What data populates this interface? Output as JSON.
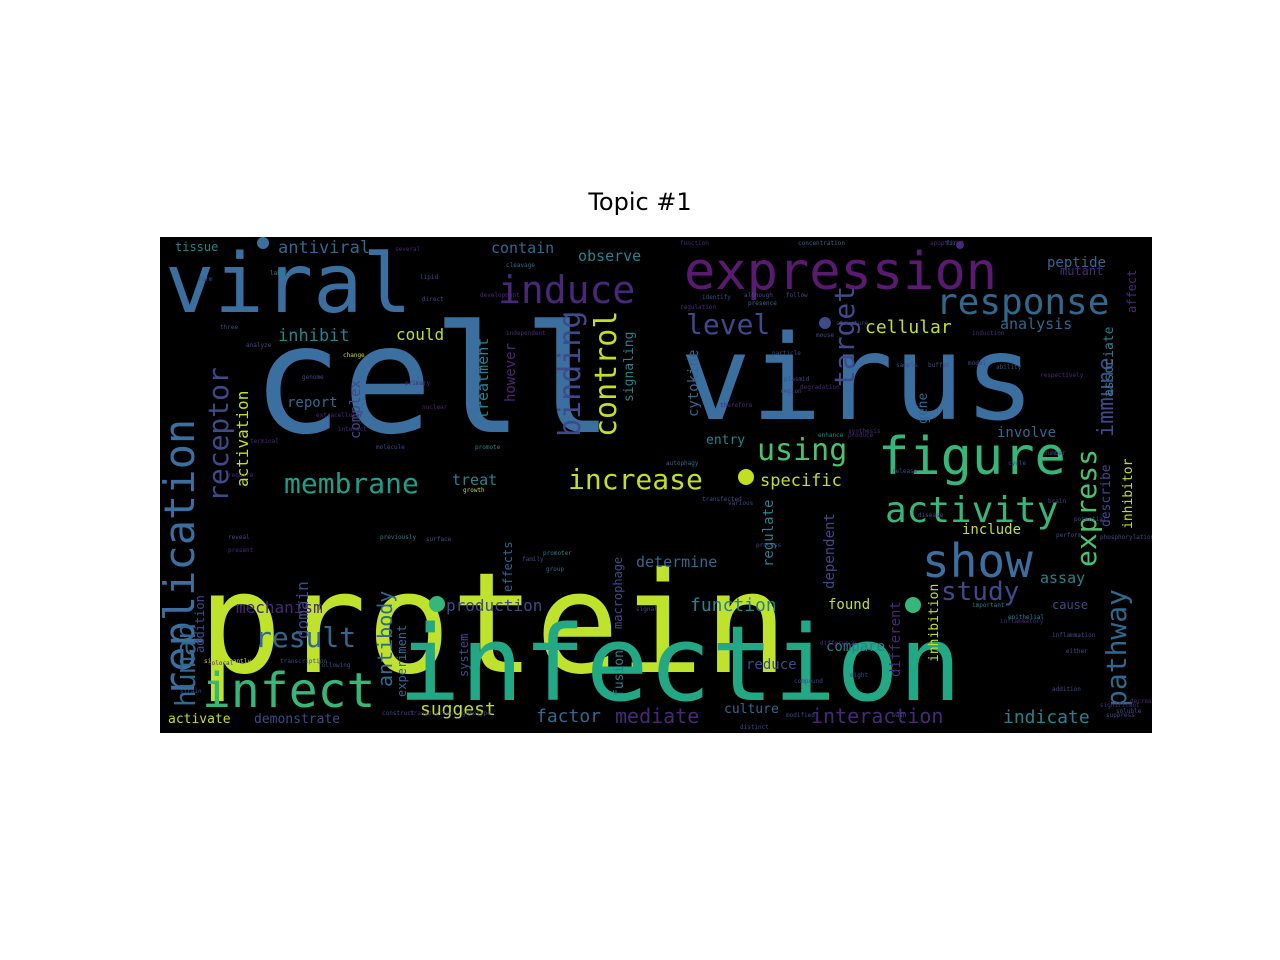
{
  "title": "Topic #1",
  "chart_data": {
    "type": "wordcloud",
    "title": "Topic #1",
    "colormap": "viridis",
    "background": "#000000",
    "words": [
      {
        "text": "cell",
        "weight": 1.0,
        "color": "#3b6fa0"
      },
      {
        "text": "virus",
        "weight": 0.92,
        "color": "#3b6fa0"
      },
      {
        "text": "protein",
        "weight": 0.96,
        "color": "#bfe22c"
      },
      {
        "text": "infection",
        "weight": 0.9,
        "color": "#22a884"
      },
      {
        "text": "viral",
        "weight": 0.7,
        "color": "#3b6fa0"
      },
      {
        "text": "expression",
        "weight": 0.52,
        "color": "#5a1a72"
      },
      {
        "text": "replication",
        "weight": 0.42,
        "color": "#3b6fa0"
      },
      {
        "text": "figure",
        "weight": 0.4,
        "color": "#35b779"
      },
      {
        "text": "infect",
        "weight": 0.4,
        "color": "#35b779"
      },
      {
        "text": "show",
        "weight": 0.38,
        "color": "#3b6fa0"
      },
      {
        "text": "induce",
        "weight": 0.36,
        "color": "#482878"
      },
      {
        "text": "response",
        "weight": 0.34,
        "color": "#31688e"
      },
      {
        "text": "activity",
        "weight": 0.32,
        "color": "#35b779"
      },
      {
        "text": "human",
        "weight": 0.3,
        "color": "#31688e"
      },
      {
        "text": "receptor",
        "weight": 0.3,
        "color": "#3e4a89"
      },
      {
        "text": "membrane",
        "weight": 0.28,
        "color": "#1f9e89"
      },
      {
        "text": "increase",
        "weight": 0.28,
        "color": "#c2df23"
      },
      {
        "text": "pathway",
        "weight": 0.27,
        "color": "#31688e"
      },
      {
        "text": "express",
        "weight": 0.27,
        "color": "#4ac16d"
      },
      {
        "text": "using",
        "weight": 0.26,
        "color": "#4ac16d"
      },
      {
        "text": "binding",
        "weight": 0.25,
        "color": "#3e4a89"
      },
      {
        "text": "control",
        "weight": 0.25,
        "color": "#c2df23"
      },
      {
        "text": "result",
        "weight": 0.25,
        "color": "#31688e"
      },
      {
        "text": "target",
        "weight": 0.25,
        "color": "#3e4a89"
      },
      {
        "text": "study",
        "weight": 0.24,
        "color": "#3e4a89"
      },
      {
        "text": "level",
        "weight": 0.24,
        "color": "#3e4a89"
      },
      {
        "text": "interaction",
        "weight": 0.22,
        "color": "#482878"
      },
      {
        "text": "immune",
        "weight": 0.21,
        "color": "#3e4a89"
      },
      {
        "text": "antibody",
        "weight": 0.2,
        "color": "#31688e"
      },
      {
        "text": "mediate",
        "weight": 0.2,
        "color": "#482878"
      },
      {
        "text": "suggest",
        "weight": 0.19,
        "color": "#c2df23"
      },
      {
        "text": "function",
        "weight": 0.19,
        "color": "#26828e"
      },
      {
        "text": "factor",
        "weight": 0.19,
        "color": "#31688e"
      },
      {
        "text": "indicate",
        "weight": 0.18,
        "color": "#26828e"
      },
      {
        "text": "mechanism",
        "weight": 0.18,
        "color": "#482878"
      },
      {
        "text": "production",
        "weight": 0.17,
        "color": "#3e4a89"
      },
      {
        "text": "activation",
        "weight": 0.17,
        "color": "#c2df23"
      },
      {
        "text": "cellular",
        "weight": 0.17,
        "color": "#c2df23"
      },
      {
        "text": "specific",
        "weight": 0.17,
        "color": "#c2df23"
      },
      {
        "text": "inhibit",
        "weight": 0.17,
        "color": "#26828e"
      },
      {
        "text": "domain",
        "weight": 0.16,
        "color": "#3e4a89"
      },
      {
        "text": "antiviral",
        "weight": 0.16,
        "color": "#31688e"
      },
      {
        "text": "contain",
        "weight": 0.15,
        "color": "#31688e"
      },
      {
        "text": "observe",
        "weight": 0.15,
        "color": "#26828e"
      },
      {
        "text": "analysis",
        "weight": 0.15,
        "color": "#31688e"
      },
      {
        "text": "peptide",
        "weight": 0.15,
        "color": "#31688e"
      },
      {
        "text": "could",
        "weight": 0.15,
        "color": "#c2df23"
      },
      {
        "text": "treatment",
        "weight": 0.14,
        "color": "#26828e"
      },
      {
        "text": "however",
        "weight": 0.14,
        "color": "#482878"
      },
      {
        "text": "signaling",
        "weight": 0.14,
        "color": "#26828e"
      },
      {
        "text": "cytokine",
        "weight": 0.14,
        "color": "#31688e"
      },
      {
        "text": "complex",
        "weight": 0.14,
        "color": "#3e4a89"
      },
      {
        "text": "report",
        "weight": 0.14,
        "color": "#31688e"
      },
      {
        "text": "treat",
        "weight": 0.13,
        "color": "#26828e"
      },
      {
        "text": "entry",
        "weight": 0.13,
        "color": "#26828e"
      },
      {
        "text": "involve",
        "weight": 0.13,
        "color": "#31688e"
      },
      {
        "text": "gene",
        "weight": 0.13,
        "color": "#31688e"
      },
      {
        "text": "include",
        "weight": 0.13,
        "color": "#c2df23"
      },
      {
        "text": "assay",
        "weight": 0.13,
        "color": "#26828e"
      },
      {
        "text": "associate",
        "weight": 0.13,
        "color": "#26828e"
      },
      {
        "text": "describe",
        "weight": 0.12,
        "color": "#3e4a89"
      },
      {
        "text": "inhibitor",
        "weight": 0.12,
        "color": "#c2df23"
      },
      {
        "text": "determine",
        "weight": 0.13,
        "color": "#31688e"
      },
      {
        "text": "dependent",
        "weight": 0.13,
        "color": "#3e4a89"
      },
      {
        "text": "regulate",
        "weight": 0.13,
        "color": "#26828e"
      },
      {
        "text": "different",
        "weight": 0.13,
        "color": "#482878"
      },
      {
        "text": "found",
        "weight": 0.13,
        "color": "#c2df23"
      },
      {
        "text": "compare",
        "weight": 0.13,
        "color": "#26828e"
      },
      {
        "text": "reduce",
        "weight": 0.13,
        "color": "#3e4a89"
      },
      {
        "text": "inhibition",
        "weight": 0.12,
        "color": "#c2df23"
      },
      {
        "text": "culture",
        "weight": 0.13,
        "color": "#31688e"
      },
      {
        "text": "fusion",
        "weight": 0.12,
        "color": "#26828e"
      },
      {
        "text": "activate",
        "weight": 0.12,
        "color": "#c2df23"
      },
      {
        "text": "demonstrate",
        "weight": 0.12,
        "color": "#3e4a89"
      },
      {
        "text": "addition",
        "weight": 0.11,
        "color": "#3e4a89"
      },
      {
        "text": "experiment",
        "weight": 0.11,
        "color": "#31688e"
      },
      {
        "text": "effects",
        "weight": 0.11,
        "color": "#31688e"
      },
      {
        "text": "macrophage",
        "weight": 0.11,
        "color": "#3e4a89"
      },
      {
        "text": "system",
        "weight": 0.11,
        "color": "#3e4a89"
      },
      {
        "text": "tissue",
        "weight": 0.11,
        "color": "#26828e"
      },
      {
        "text": "mutant",
        "weight": 0.11,
        "color": "#482878"
      },
      {
        "text": "affect",
        "weight": 0.1,
        "color": "#482878"
      },
      {
        "text": "cause",
        "weight": 0.1,
        "color": "#3e4a89"
      },
      {
        "text": "significantly",
        "weight": 0.05,
        "color": "#c2df23"
      },
      {
        "text": "transcription",
        "weight": 0.05,
        "color": "#3e4a89"
      },
      {
        "text": "apoptosis",
        "weight": 0.05,
        "color": "#482878"
      },
      {
        "text": "concentration",
        "weight": 0.05,
        "color": "#31688e"
      },
      {
        "text": "function",
        "weight": 0.05,
        "color": "#482878"
      },
      {
        "text": "first",
        "weight": 0.05,
        "color": "#3e4a89"
      },
      {
        "text": "several",
        "weight": 0.05,
        "color": "#482878"
      },
      {
        "text": "development",
        "weight": 0.05,
        "color": "#482878"
      },
      {
        "text": "cleavage",
        "weight": 0.05,
        "color": "#31688e"
      },
      {
        "text": "label",
        "weight": 0.05,
        "color": "#26828e"
      },
      {
        "text": "lipid",
        "weight": 0.05,
        "color": "#3e4a89"
      },
      {
        "text": "direct",
        "weight": 0.05,
        "color": "#3e4a89"
      },
      {
        "text": "change",
        "weight": 0.05,
        "color": "#c2df23"
      },
      {
        "text": "primary",
        "weight": 0.05,
        "color": "#482878"
      },
      {
        "text": "nuclear",
        "weight": 0.05,
        "color": "#482878"
      },
      {
        "text": "molecule",
        "weight": 0.05,
        "color": "#3e4a89"
      },
      {
        "text": "promote",
        "weight": 0.05,
        "color": "#26828e"
      },
      {
        "text": "growth",
        "weight": 0.05,
        "color": "#c2df23"
      },
      {
        "text": "previously",
        "weight": 0.05,
        "color": "#26828e"
      },
      {
        "text": "surface",
        "weight": 0.05,
        "color": "#3e4a89"
      },
      {
        "text": "promoter",
        "weight": 0.05,
        "color": "#26828e"
      },
      {
        "text": "present",
        "weight": 0.05,
        "color": "#482878"
      },
      {
        "text": "reveal",
        "weight": 0.05,
        "color": "#3e4a89"
      },
      {
        "text": "family",
        "weight": 0.05,
        "color": "#3e4a89"
      },
      {
        "text": "group",
        "weight": 0.05,
        "color": "#31688e"
      },
      {
        "text": "identify",
        "weight": 0.05,
        "color": "#3e4a89"
      },
      {
        "text": "presence",
        "weight": 0.05,
        "color": "#31688e"
      },
      {
        "text": "follow",
        "weight": 0.05,
        "color": "#3e4a89"
      },
      {
        "text": "although",
        "weight": 0.05,
        "color": "#3e4a89"
      },
      {
        "text": "regulation",
        "weight": 0.05,
        "color": "#482878"
      },
      {
        "text": "enhance",
        "weight": 0.05,
        "color": "#26828e"
      },
      {
        "text": "synthesis",
        "weight": 0.05,
        "color": "#482878"
      },
      {
        "text": "autophagy",
        "weight": 0.05,
        "color": "#31688e"
      },
      {
        "text": "therefore",
        "weight": 0.05,
        "color": "#482878"
      },
      {
        "text": "various",
        "weight": 0.05,
        "color": "#3e4a89"
      },
      {
        "text": "transfected",
        "weight": 0.05,
        "color": "#3e4a89"
      },
      {
        "text": "process",
        "weight": 0.05,
        "color": "#3e4a89"
      },
      {
        "text": "signal",
        "weight": 0.05,
        "color": "#3e4a89"
      },
      {
        "text": "particle",
        "weight": 0.05,
        "color": "#3e4a89"
      },
      {
        "text": "plasmid",
        "weight": 0.05,
        "color": "#3e4a89"
      },
      {
        "text": "region",
        "weight": 0.05,
        "color": "#3e4a89"
      },
      {
        "text": "degradation",
        "weight": 0.05,
        "color": "#482878"
      },
      {
        "text": "produce",
        "weight": 0.05,
        "color": "#482878"
      },
      {
        "text": "disease",
        "weight": 0.05,
        "color": "#3e4a89"
      },
      {
        "text": "important",
        "weight": 0.05,
        "color": "#26828e"
      },
      {
        "text": "perform",
        "weight": 0.05,
        "color": "#3e4a89"
      },
      {
        "text": "potential",
        "weight": 0.05,
        "color": "#3e4a89"
      },
      {
        "text": "epithelial",
        "weight": 0.05,
        "color": "#26828e"
      },
      {
        "text": "inflammatory",
        "weight": 0.05,
        "color": "#482878"
      },
      {
        "text": "either",
        "weight": 0.05,
        "color": "#3e4a89"
      },
      {
        "text": "phosphorylation",
        "weight": 0.05,
        "color": "#3e4a89"
      },
      {
        "text": "inflammation",
        "weight": 0.05,
        "color": "#3e4a89"
      },
      {
        "text": "difference",
        "weight": 0.05,
        "color": "#482878"
      },
      {
        "text": "might",
        "weight": 0.05,
        "color": "#3e4a89"
      },
      {
        "text": "release",
        "weight": 0.05,
        "color": "#3e4a89"
      },
      {
        "text": "brain",
        "weight": 0.05,
        "color": "#3e4a89"
      },
      {
        "text": "number",
        "weight": 0.05,
        "color": "#3e4a89"
      },
      {
        "text": "cycle",
        "weight": 0.05,
        "color": "#3e4a89"
      },
      {
        "text": "ability",
        "weight": 0.05,
        "color": "#3e4a89"
      },
      {
        "text": "induction",
        "weight": 0.05,
        "color": "#482878"
      },
      {
        "text": "buffer",
        "weight": 0.05,
        "color": "#3e4a89"
      },
      {
        "text": "structure",
        "weight": 0.05,
        "color": "#3e4a89"
      },
      {
        "text": "mouse",
        "weight": 0.05,
        "color": "#3e4a89"
      },
      {
        "text": "model",
        "weight": 0.05,
        "color": "#3e4a89"
      },
      {
        "text": "sample",
        "weight": 0.05,
        "color": "#3e4a89"
      },
      {
        "text": "respectively",
        "weight": 0.05,
        "color": "#482878"
      },
      {
        "text": "form",
        "weight": 0.05,
        "color": "#3e4a89"
      },
      {
        "text": "three",
        "weight": 0.05,
        "color": "#3e4a89"
      },
      {
        "text": "analyze",
        "weight": 0.05,
        "color": "#3e4a89"
      },
      {
        "text": "genome",
        "weight": 0.05,
        "color": "#3e4a89"
      },
      {
        "text": "extracellular",
        "weight": 0.05,
        "color": "#482878"
      },
      {
        "text": "interact",
        "weight": 0.05,
        "color": "#482878"
      },
      {
        "text": "terminal",
        "weight": 0.05,
        "color": "#482878"
      },
      {
        "text": "require",
        "weight": 0.05,
        "color": "#482878"
      },
      {
        "text": "following",
        "weight": 0.05,
        "color": "#3e4a89"
      },
      {
        "text": "strain",
        "weight": 0.05,
        "color": "#3e4a89"
      },
      {
        "text": "colocal",
        "weight": 0.05,
        "color": "#482878"
      },
      {
        "text": "independent",
        "weight": 0.05,
        "color": "#482878"
      },
      {
        "text": "modified",
        "weight": 0.05,
        "color": "#3e4a89"
      },
      {
        "text": "compound",
        "weight": 0.05,
        "color": "#3e4a89"
      },
      {
        "text": "distinct",
        "weight": 0.05,
        "color": "#3e4a89"
      },
      {
        "text": "construct",
        "weight": 0.05,
        "color": "#3e4a89"
      },
      {
        "text": "transduction",
        "weight": 0.05,
        "color": "#482878"
      },
      {
        "text": "genotype",
        "weight": 0.05,
        "color": "#3e4a89"
      },
      {
        "text": "suppress",
        "weight": 0.05,
        "color": "#3e4a89"
      },
      {
        "text": "soluble",
        "weight": 0.05,
        "color": "#3e4a89"
      },
      {
        "text": "significant",
        "weight": 0.05,
        "color": "#482878"
      },
      {
        "text": "decrease",
        "weight": 0.05,
        "color": "#482878"
      },
      {
        "text": "wash",
        "weight": 0.05,
        "color": "#3e4a89"
      },
      {
        "text": "addition",
        "weight": 0.05,
        "color": "#3e4a89"
      },
      {
        "text": "flow",
        "weight": 0.05,
        "color": "#3e4a89"
      },
      {
        "text": "condition",
        "weight": 0.05,
        "color": "#482878"
      }
    ]
  }
}
